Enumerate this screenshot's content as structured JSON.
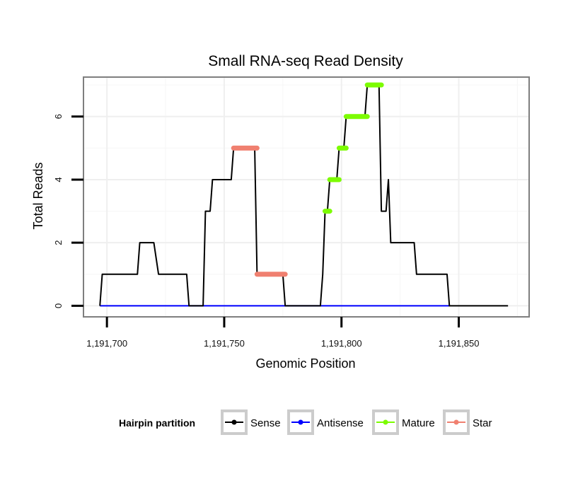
{
  "chart_data": {
    "type": "line",
    "title": "Small RNA-seq Read Density",
    "xlabel": "Genomic Position",
    "ylabel": "Total Reads",
    "xlim": [
      1191690,
      1191880
    ],
    "ylim": [
      -0.35,
      7.25
    ],
    "x_ticks": [
      1191700,
      1191750,
      1191800,
      1191850
    ],
    "x_tick_labels": [
      "1,191,700",
      "1,191,750",
      "1,191,800",
      "1,191,850"
    ],
    "y_ticks": [
      0,
      2,
      4,
      6
    ],
    "y_tick_labels": [
      "0",
      "2",
      "4",
      "6"
    ],
    "grid": true,
    "legend": {
      "title": "Hairpin partition",
      "position": "bottom",
      "entries": [
        "Sense",
        "Antisense",
        "Mature",
        "Star"
      ]
    },
    "series": [
      {
        "name": "Sense",
        "color": "#000000",
        "points": [
          [
            1191697,
            0
          ],
          [
            1191698,
            1
          ],
          [
            1191713,
            1
          ],
          [
            1191714,
            2
          ],
          [
            1191720,
            2
          ],
          [
            1191722,
            1
          ],
          [
            1191734,
            1
          ],
          [
            1191735,
            0
          ],
          [
            1191741,
            0
          ],
          [
            1191742,
            3
          ],
          [
            1191744,
            3
          ],
          [
            1191745,
            4
          ],
          [
            1191753,
            4
          ],
          [
            1191754,
            5
          ],
          [
            1191763,
            5
          ],
          [
            1191764,
            1
          ],
          [
            1191775,
            1
          ],
          [
            1191776,
            0
          ],
          [
            1191791,
            0
          ],
          [
            1191792,
            1
          ],
          [
            1191793,
            3
          ],
          [
            1191794,
            3
          ],
          [
            1191795,
            4
          ],
          [
            1191798,
            4
          ],
          [
            1191799,
            5
          ],
          [
            1191801,
            5
          ],
          [
            1191802,
            6
          ],
          [
            1191810,
            6
          ],
          [
            1191811,
            7
          ],
          [
            1191816,
            7
          ],
          [
            1191817,
            3
          ],
          [
            1191819,
            3
          ],
          [
            1191820,
            4
          ],
          [
            1191821,
            2
          ],
          [
            1191831,
            2
          ],
          [
            1191832,
            1
          ],
          [
            1191845,
            1
          ],
          [
            1191846,
            0
          ],
          [
            1191871,
            0
          ]
        ]
      },
      {
        "name": "Antisense",
        "color": "#0000ff",
        "points": [
          [
            1191697,
            0
          ],
          [
            1191846,
            0
          ]
        ]
      },
      {
        "name": "Mature",
        "color": "#7cfc00",
        "segments": [
          [
            [
              1191793,
              3
            ],
            [
              1191795,
              3
            ]
          ],
          [
            [
              1191795,
              4
            ],
            [
              1191799,
              4
            ]
          ],
          [
            [
              1191799,
              5
            ],
            [
              1191802,
              5
            ]
          ],
          [
            [
              1191802,
              6
            ],
            [
              1191811,
              6
            ]
          ],
          [
            [
              1191811,
              7
            ],
            [
              1191817,
              7
            ]
          ]
        ]
      },
      {
        "name": "Star",
        "color": "#f08070",
        "segments": [
          [
            [
              1191754,
              5
            ],
            [
              1191764,
              5
            ]
          ],
          [
            [
              1191764,
              1
            ],
            [
              1191776,
              1
            ]
          ]
        ]
      }
    ]
  }
}
